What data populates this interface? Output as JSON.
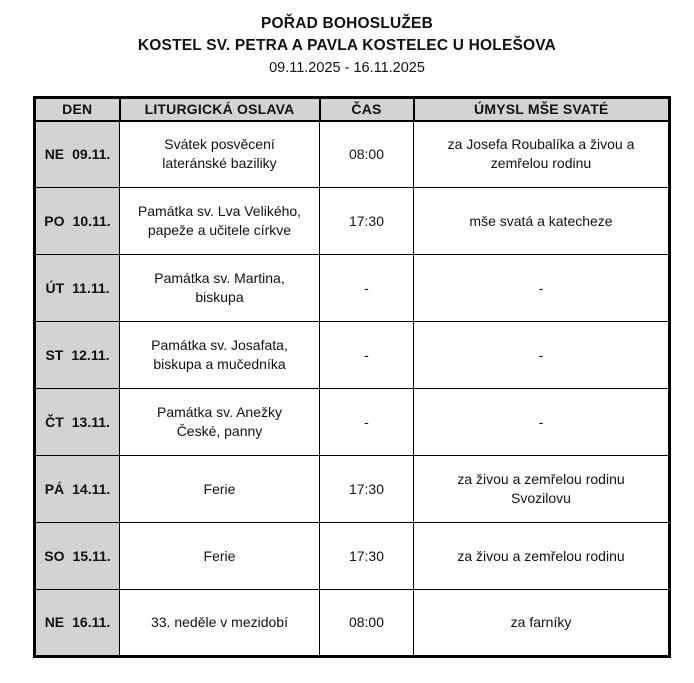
{
  "header": {
    "title": "POŘAD BOHOSLUŽEB",
    "subtitle": "KOSTEL SV. PETRA A PAVLA KOSTELEC U HOLEŠOVA",
    "date_range": "09.11.2025 - 16.11.2025"
  },
  "table": {
    "columns": [
      "DEN",
      "LITURGICKÁ OSLAVA",
      "ČAS",
      "ÚMYSL MŠE SVATÉ"
    ],
    "header_bg": "#d3d3d3",
    "day_col_bg": "#d3d3d3",
    "rows": [
      {
        "day": "NE",
        "date": "09.11.",
        "celebration": "Svátek posvěcení\nlateránské baziliky",
        "time": "08:00",
        "intention": "za Josefa Roubalíka a živou a\nzemřelou rodinu"
      },
      {
        "day": "PO",
        "date": "10.11.",
        "celebration": "Památka sv. Lva Velikého,\npapeže a učitele církve",
        "time": "17:30",
        "intention": "mše svatá a katecheze"
      },
      {
        "day": "ÚT",
        "date": "11.11.",
        "celebration": "Památka sv. Martina,\nbiskupa",
        "time": "-",
        "intention": "-"
      },
      {
        "day": "ST",
        "date": "12.11.",
        "celebration": "Památka sv. Josafata,\nbiskupa a mučedníka",
        "time": "-",
        "intention": "-"
      },
      {
        "day": "ČT",
        "date": "13.11.",
        "celebration": "Památka sv. Anežky\nČeské, panny",
        "time": "-",
        "intention": "-"
      },
      {
        "day": "PÁ",
        "date": "14.11.",
        "celebration": "Ferie",
        "time": "17:30",
        "intention": "za živou a zemřelou rodinu\nSvozilovu"
      },
      {
        "day": "SO",
        "date": "15.11.",
        "celebration": "Ferie",
        "time": "17:30",
        "intention": "za živou a zemřelou rodinu"
      },
      {
        "day": "NE",
        "date": "16.11.",
        "celebration": "33. neděle v mezidobí",
        "time": "08:00",
        "intention": "za farníky"
      }
    ]
  }
}
